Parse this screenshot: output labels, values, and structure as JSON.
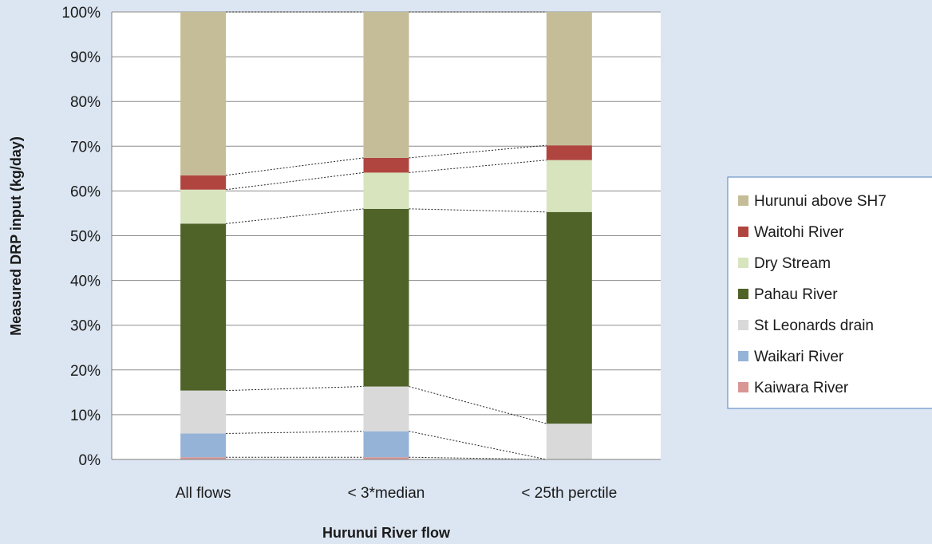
{
  "chart_data": {
    "type": "bar",
    "stacked": true,
    "percent": true,
    "xlabel": "Hurunui River flow",
    "ylabel": "Measured DRP input (kg/day)",
    "ylim": [
      0,
      100
    ],
    "yticks": [
      "0%",
      "10%",
      "20%",
      "30%",
      "40%",
      "50%",
      "60%",
      "70%",
      "80%",
      "90%",
      "100%"
    ],
    "grid": true,
    "legend_position": "right",
    "categories": [
      "All flows",
      "< 3*median",
      "< 25th perctile"
    ],
    "series": [
      {
        "name": "Kaiwara River",
        "color": "#d99694",
        "values": [
          0.5,
          0.5,
          0.0
        ]
      },
      {
        "name": "Waikari River",
        "color": "#95b3d7",
        "values": [
          5.3,
          5.8,
          0.0
        ]
      },
      {
        "name": "St Leonards drain",
        "color": "#d9d9d9",
        "values": [
          9.6,
          10.0,
          8.0
        ]
      },
      {
        "name": "Pahau River",
        "color": "#4f6228",
        "values": [
          37.3,
          39.7,
          47.3
        ]
      },
      {
        "name": "Dry Stream",
        "color": "#d7e4bd",
        "values": [
          7.6,
          8.1,
          11.6
        ]
      },
      {
        "name": "Waitohi River",
        "color": "#b04540",
        "values": [
          3.2,
          3.3,
          3.3
        ]
      },
      {
        "name": "Hurunui above SH7",
        "color": "#c4bd97",
        "values": [
          36.5,
          32.6,
          29.8
        ]
      }
    ]
  }
}
